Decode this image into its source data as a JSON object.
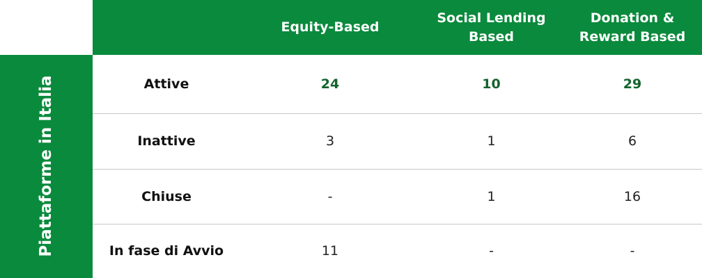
{
  "side_label": "Piattaforme in Italia",
  "table": {
    "columns": [
      "Equity-Based",
      "Social Lending Based",
      "Donation & Reward Based"
    ],
    "rows": [
      {
        "label": "Attive",
        "cells": [
          24,
          10,
          29
        ]
      },
      {
        "label": "Inattive",
        "cells": [
          3,
          1,
          6
        ]
      },
      {
        "label": "Chiuse",
        "cells": [
          "-",
          1,
          16
        ]
      },
      {
        "label": "In fase di Avvio",
        "cells": [
          11,
          "-",
          "-"
        ]
      }
    ]
  }
}
